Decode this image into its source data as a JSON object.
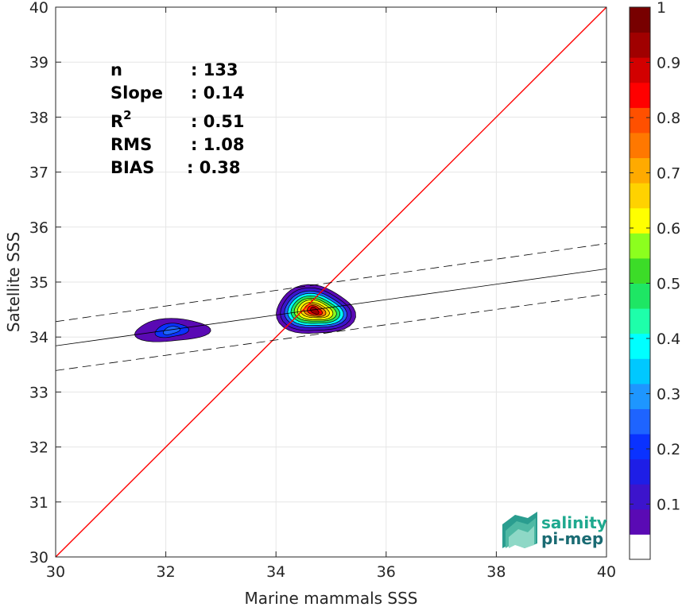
{
  "chart_data": {
    "type": "contour-density-scatter",
    "xlabel": "Marine mammals SSS",
    "ylabel": "Satellite SSS",
    "xlim": [
      30,
      40
    ],
    "ylim": [
      30,
      40
    ],
    "x_ticks": [
      30,
      32,
      34,
      36,
      38,
      40
    ],
    "y_ticks": [
      30,
      31,
      32,
      33,
      34,
      35,
      36,
      37,
      38,
      39,
      40
    ],
    "grid": true,
    "stats": [
      {
        "label": "n",
        "value": ": 133"
      },
      {
        "label": "Slope",
        "value": ": 0.14"
      },
      {
        "label": "R",
        "sup": "2",
        "value": ": 0.51"
      },
      {
        "label": "RMS",
        "value": ": 1.08"
      },
      {
        "label": "BIAS",
        "value": ": 0.38"
      }
    ],
    "identity_line": {
      "from": [
        30,
        30
      ],
      "to": [
        40,
        40
      ],
      "color": "#ff0000"
    },
    "regression": {
      "intercept_at_30": 33.84,
      "value_at_40": 35.24
    },
    "regression_band": {
      "upper_at_30": 34.28,
      "upper_at_40": 35.7,
      "lower_at_30": 33.39,
      "lower_at_40": 34.78
    },
    "clusters": [
      {
        "center": [
          32.1,
          34.12
        ],
        "peak_density": 0.25
      },
      {
        "center": [
          34.7,
          34.48
        ],
        "peak_density": 1.0
      }
    ],
    "colorbar": {
      "range": [
        0,
        1
      ],
      "ticks": [
        "0.1",
        "0.2",
        "0.3",
        "0.4",
        "0.5",
        "0.6",
        "0.7",
        "0.8",
        "0.9",
        "1"
      ],
      "colors": [
        "#ffffff",
        "#5a0ab4",
        "#3c14cc",
        "#1e1ee6",
        "#0a32ff",
        "#1e64ff",
        "#1e96ff",
        "#00c8ff",
        "#00ffff",
        "#1effaa",
        "#1ee664",
        "#3cdc28",
        "#8cff1e",
        "#ffff00",
        "#ffd200",
        "#ffaa00",
        "#ff7800",
        "#ff5000",
        "#ff0000",
        "#d20000",
        "#a00000",
        "#780000"
      ]
    },
    "logo": {
      "line1": "salinity",
      "line2": "pi-mep"
    }
  }
}
